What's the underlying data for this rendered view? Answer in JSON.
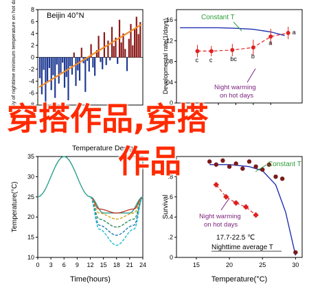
{
  "watermark": {
    "line1": "穿搭作品,穿搭",
    "line2": "作品"
  },
  "colors": {
    "bar": "#8b1a1a",
    "neg_bar": "#1f3a93",
    "orange": "#f28c28",
    "red": "#e02020",
    "blue": "#1f2db0",
    "green": "#2a9d3a",
    "purple": "#7a1f7a",
    "axis": "#000000"
  },
  "chart_data": [
    {
      "id": "A",
      "type": "bar",
      "title": "Beijin 40°N",
      "ylabel": "Anomaly of nighttime minimum temperature on hot days",
      "ylim": [
        -8,
        8
      ],
      "yticks": [
        -8,
        -6,
        -4,
        -2,
        0,
        2,
        4,
        6,
        8
      ],
      "x_range": [
        1960,
        2013
      ],
      "values": [
        -3.5,
        -6.2,
        -2.1,
        -7.8,
        -4.0,
        -1.8,
        -5.5,
        -3.0,
        -6.8,
        -1.2,
        -4.4,
        -2.6,
        -0.9,
        -5.1,
        -3.3,
        -7.2,
        -1.5,
        -2.9,
        0.8,
        -4.8,
        -2.2,
        -3.9,
        1.6,
        -1.0,
        -5.8,
        -0.6,
        -2.4,
        2.2,
        -1.7,
        -3.1,
        1.2,
        3.6,
        -0.8,
        -2.0,
        4.2,
        -1.3,
        2.8,
        -0.5,
        5.1,
        1.9,
        3.3,
        -1.1,
        6.3,
        2.5,
        4.0,
        1.4,
        -2.3,
        3.1,
        5.6,
        2.0,
        4.7,
        6.8,
        3.9,
        5.9
      ],
      "trend": {
        "color": "orange",
        "start": -5.0,
        "end": 5.5
      }
    },
    {
      "id": "B",
      "type": "line",
      "ylabel": "Developmental rate(1/days)",
      "ylim": [
        0,
        0.18
      ],
      "yticks": [
        "0",
        ".04",
        ".08",
        ".12",
        ".16"
      ],
      "xlim": [
        14,
        32
      ],
      "xticks": [
        17.5,
        20.0,
        22.5,
        25.0,
        27.5
      ],
      "annotations": [
        "Constant T",
        "Night warming on hot days"
      ],
      "constant_T": {
        "x": [
          14.5,
          17.5,
          20,
          22.5,
          25,
          27.5,
          29.5
        ],
        "y": [
          0.145,
          0.145,
          0.145,
          0.144,
          0.142,
          0.137,
          0.13
        ]
      },
      "night_warming": {
        "x": [
          17,
          19,
          22,
          25,
          27.5,
          30
        ],
        "y": [
          0.1,
          0.1,
          0.102,
          0.107,
          0.128,
          0.135
        ],
        "err": [
          0.012,
          0.01,
          0.012,
          0.015,
          0.015,
          0.012
        ],
        "letters": [
          "c",
          "c",
          "bc",
          "b",
          "a",
          "a"
        ]
      }
    },
    {
      "id": "C",
      "type": "line",
      "title": "Temperature Design",
      "xlabel": "Time(hours)",
      "ylabel": "Temperature(°C)",
      "xlim": [
        0,
        24
      ],
      "ylim": [
        10,
        35
      ],
      "xticks": [
        0,
        3,
        6,
        9,
        12,
        15,
        18,
        21,
        24
      ],
      "yticks": [
        10,
        15,
        20,
        25,
        30,
        35
      ],
      "series": [
        {
          "color": "#2a9d8f",
          "x": [
            0,
            6,
            12,
            15,
            18,
            21,
            24
          ],
          "y": [
            25,
            35,
            25,
            21,
            21,
            21,
            25
          ]
        },
        {
          "color": "#c0392b",
          "x": [
            12,
            14,
            18,
            22,
            24
          ],
          "y": [
            25,
            22,
            21,
            22,
            25
          ]
        },
        {
          "color": "#d4a017",
          "x": [
            12,
            14,
            18,
            22,
            24
          ],
          "y": [
            25,
            21,
            19.5,
            21,
            25
          ]
        },
        {
          "color": "#2e8b57",
          "x": [
            12,
            14,
            18,
            22,
            24
          ],
          "y": [
            25,
            19.5,
            17.5,
            19.5,
            25
          ]
        },
        {
          "color": "#1f77b4",
          "x": [
            12,
            14,
            18,
            22,
            24
          ],
          "y": [
            25,
            18,
            15.5,
            18,
            25
          ]
        },
        {
          "color": "#17becf",
          "x": [
            12,
            14,
            18,
            22,
            24
          ],
          "y": [
            25,
            17,
            13,
            17,
            25
          ]
        }
      ]
    },
    {
      "id": "D",
      "type": "scatter",
      "xlabel": "Temperature(°C)",
      "ylabel": "Survival",
      "xlim": [
        12,
        31
      ],
      "ylim": [
        0,
        1.0
      ],
      "xticks": [
        15,
        20,
        25,
        30
      ],
      "yticks": [
        "0",
        ".2",
        ".4",
        ".6",
        ".8"
      ],
      "annotations": [
        "Constant T",
        "Night warming on hot days",
        "17.7-22.5 ℃",
        "Nighttime average T"
      ],
      "constant_T_points": {
        "x": [
          17,
          18,
          19,
          20,
          21,
          22,
          23,
          24,
          25,
          26,
          27,
          28,
          30
        ],
        "y": [
          0.95,
          0.92,
          0.96,
          0.9,
          0.93,
          0.88,
          0.95,
          0.9,
          0.87,
          0.92,
          0.8,
          0.78,
          0.05
        ]
      },
      "constant_T_curve": {
        "x": [
          17,
          20,
          23,
          25,
          27,
          28.5,
          30
        ],
        "y": [
          0.92,
          0.92,
          0.9,
          0.86,
          0.72,
          0.45,
          0.02
        ]
      },
      "night_warming": {
        "x": [
          18,
          19.5,
          21,
          22.5,
          24
        ],
        "y": [
          0.72,
          0.6,
          0.54,
          0.5,
          0.42
        ]
      }
    }
  ]
}
